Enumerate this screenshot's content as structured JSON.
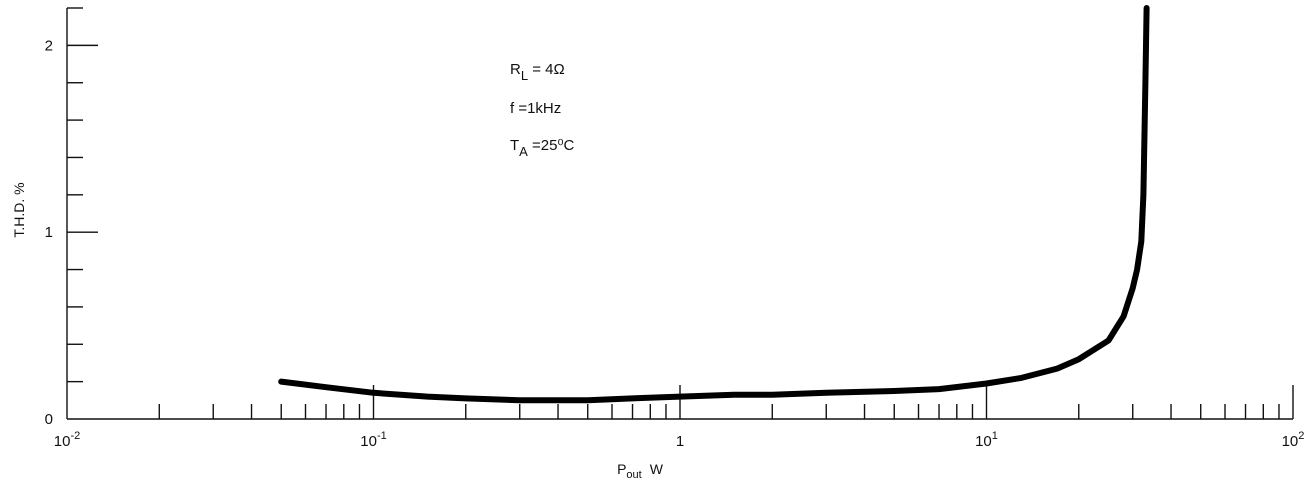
{
  "chart_data": {
    "type": "line",
    "title": "",
    "xlabel": "P",
    "xlabel_sub": "out",
    "xlabel_unit": "W",
    "ylabel": "T.H.D.  %",
    "xscale": "log",
    "xlim": [
      0.01,
      100
    ],
    "ylim": [
      0,
      2.2
    ],
    "grid": false,
    "x_tick_labels": [
      {
        "value": 0.01,
        "base": "10",
        "exp": "-2"
      },
      {
        "value": 0.1,
        "base": "10",
        "exp": "-1"
      },
      {
        "value": 1,
        "base": "1",
        "exp": ""
      },
      {
        "value": 10,
        "base": "10",
        "exp": "1"
      },
      {
        "value": 100,
        "base": "10",
        "exp": "2"
      }
    ],
    "y_tick_labels": [
      {
        "value": 0,
        "label": "0"
      },
      {
        "value": 1,
        "label": "1"
      },
      {
        "value": 2,
        "label": "2"
      }
    ],
    "y_minor_step": 0.2,
    "annotations": [
      {
        "main": "R",
        "sub": "L",
        "rest": " = 4Ω"
      },
      {
        "main": "f    =1kHz",
        "sub": "",
        "rest": ""
      },
      {
        "main": "T",
        "sub": "A",
        "rest": " =25⁰C"
      }
    ],
    "series": [
      {
        "x": [
          0.05,
          0.07,
          0.1,
          0.15,
          0.2,
          0.3,
          0.5,
          0.7,
          1,
          1.5,
          2,
          3,
          5,
          7,
          10,
          13,
          17,
          20,
          25,
          28,
          30,
          31,
          32,
          32.5,
          33,
          33.3
        ],
        "y": [
          0.2,
          0.17,
          0.14,
          0.12,
          0.11,
          0.1,
          0.1,
          0.11,
          0.12,
          0.13,
          0.13,
          0.14,
          0.15,
          0.16,
          0.19,
          0.22,
          0.27,
          0.32,
          0.42,
          0.55,
          0.7,
          0.8,
          0.95,
          1.2,
          1.8,
          2.2
        ]
      }
    ]
  }
}
